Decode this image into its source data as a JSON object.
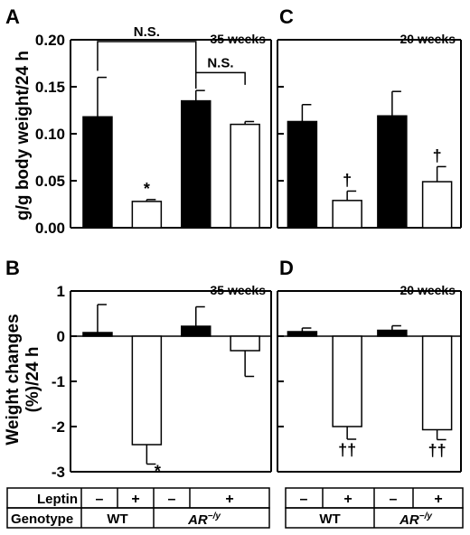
{
  "figure": {
    "ylabel_top": "g/g body weight/24 h",
    "ylabel_bottom_line1": "Weight changes",
    "ylabel_bottom_line2": "(%)/24 h"
  },
  "table": {
    "leptin_label": "Leptin",
    "genotype_label": "Genotype",
    "leptin_values": [
      "–",
      "+",
      "–",
      "+"
    ],
    "genotypes": [
      "WT",
      "AR"
    ],
    "ar_superscript": "−/y"
  },
  "chart_data": [
    {
      "panel": "A",
      "type": "bar",
      "title": "35 weeks",
      "ylim": [
        0,
        0.2
      ],
      "yticks": [
        "0.00",
        "0.05",
        "0.10",
        "0.15",
        "0.20"
      ],
      "ytick_values": [
        0,
        0.05,
        0.1,
        0.15,
        0.2
      ],
      "values": [
        0.118,
        0.028,
        0.135,
        0.11
      ],
      "errors": [
        0.042,
        0.002,
        0.011,
        0.003
      ],
      "fills": [
        "#000000",
        "#ffffff",
        "#000000",
        "#ffffff"
      ],
      "markers": [
        "",
        "*",
        "",
        ""
      ],
      "brackets": [
        "N.S.",
        "N.S."
      ]
    },
    {
      "panel": "C",
      "type": "bar",
      "title": "20 weeks",
      "ylim": [
        0,
        0.2
      ],
      "values": [
        0.113,
        0.029,
        0.119,
        0.049
      ],
      "errors": [
        0.018,
        0.01,
        0.026,
        0.016
      ],
      "fills": [
        "#000000",
        "#ffffff",
        "#000000",
        "#ffffff"
      ],
      "markers": [
        "",
        "†",
        "",
        "†"
      ]
    },
    {
      "panel": "B",
      "type": "bar",
      "title": "35 weeks",
      "ylim": [
        -3,
        1
      ],
      "yticks": [
        "1",
        "0",
        "-1",
        "-2",
        "-3"
      ],
      "ytick_values": [
        1,
        0,
        -1,
        -2,
        -3
      ],
      "values": [
        0.08,
        -2.4,
        0.22,
        -0.32
      ],
      "errors": [
        0.62,
        0.43,
        0.43,
        0.57
      ],
      "fills": [
        "#000000",
        "#ffffff",
        "#000000",
        "#ffffff"
      ],
      "markers": [
        "",
        "*",
        "",
        ""
      ]
    },
    {
      "panel": "D",
      "type": "bar",
      "title": "20 weeks",
      "ylim": [
        -3,
        1
      ],
      "values": [
        0.1,
        -2.0,
        0.13,
        -2.07
      ],
      "errors": [
        0.08,
        0.28,
        0.1,
        0.22
      ],
      "fills": [
        "#000000",
        "#ffffff",
        "#000000",
        "#ffffff"
      ],
      "markers": [
        "",
        "††",
        "",
        "††"
      ]
    }
  ]
}
